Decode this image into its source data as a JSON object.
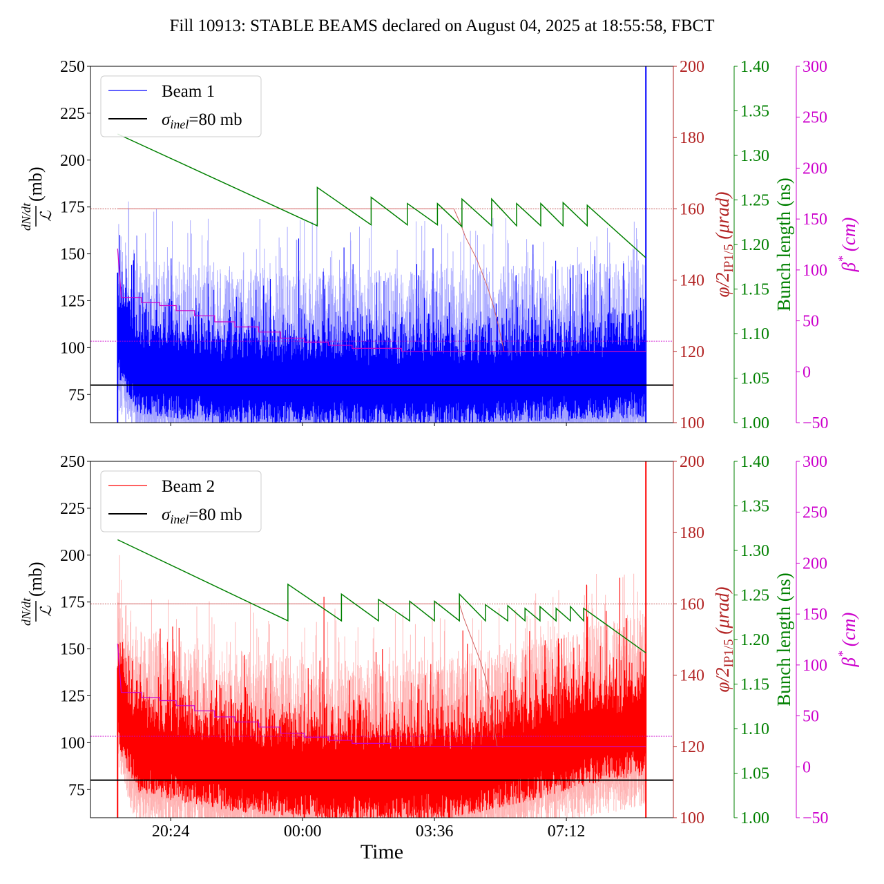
{
  "chart_data": {
    "type": "line",
    "title": "Fill 10913: STABLE BEAMS declared on August 04, 2025 at 18:55:58, FBCT",
    "xlabel": "Time",
    "x_units": "hours relative to 00:00",
    "xlim": [
      -5.79,
      10.12
    ],
    "xticks": [
      {
        "v": -3.6,
        "label": "20:24"
      },
      {
        "v": 0,
        "label": "00:00"
      },
      {
        "v": 3.6,
        "label": "03:36"
      },
      {
        "v": 7.2,
        "label": "07:12"
      }
    ],
    "axes": {
      "left": {
        "label_num": "dN/dt",
        "label_den": "ℒ",
        "label_unit": "(mb)",
        "ylim": [
          60,
          250
        ],
        "ticks": [
          "75",
          "100",
          "125",
          "150",
          "175",
          "200",
          "225",
          "250"
        ],
        "color": "#000000"
      },
      "phi": {
        "label": "φ/2",
        "label_sub": "IP1/5",
        "label_unit": "(μrad)",
        "ylim": [
          100,
          200
        ],
        "ticks": [
          "100",
          "120",
          "140",
          "160",
          "180",
          "200"
        ],
        "color": "#b22222"
      },
      "bunch": {
        "label": "Bunch length (ns)",
        "ylim": [
          1.0,
          1.4
        ],
        "ticks": [
          "1.00",
          "1.05",
          "1.10",
          "1.15",
          "1.20",
          "1.25",
          "1.30",
          "1.35",
          "1.40"
        ],
        "color": "#008000"
      },
      "beta": {
        "label": "β",
        "label_sup": "*",
        "label_unit": "(cm)",
        "ylim": [
          -50,
          300
        ],
        "ticks": [
          "−50",
          "0",
          "50",
          "100",
          "150",
          "200",
          "250",
          "300"
        ],
        "color": "#cc00cc"
      }
    },
    "panels": [
      {
        "beam": "Beam 1",
        "color": "#0000ff",
        "light_color": "#9999ff",
        "legend": {
          "entries": [
            "Beam 1",
            "σ",
            "inel",
            "=80 mb"
          ],
          "placement": "top-left"
        },
        "sigma_inel": 80,
        "phi_ref": 160,
        "beta_ref": 30,
        "xstart": -5.05,
        "xend": 9.37,
        "noise_trend": [
          [
            -5.05,
            110
          ],
          [
            -4.5,
            90
          ],
          [
            -2,
            84
          ],
          [
            2,
            83
          ],
          [
            5,
            84
          ],
          [
            7,
            86
          ],
          [
            9.37,
            88
          ]
        ],
        "noise_spread": 14,
        "light_extra": 45,
        "seed": 7,
        "bunch_length": [
          [
            -5.05,
            1.324
          ],
          [
            0.4,
            1.221
          ],
          [
            0.4,
            1.264
          ],
          [
            1.87,
            1.222
          ],
          [
            1.87,
            1.253
          ],
          [
            2.86,
            1.222
          ],
          [
            2.86,
            1.246
          ],
          [
            3.68,
            1.222
          ],
          [
            3.68,
            1.246
          ],
          [
            4.35,
            1.22
          ],
          [
            4.35,
            1.251
          ],
          [
            5.16,
            1.221
          ],
          [
            5.16,
            1.251
          ],
          [
            5.84,
            1.221
          ],
          [
            5.84,
            1.246
          ],
          [
            6.5,
            1.221
          ],
          [
            6.5,
            1.246
          ],
          [
            7.11,
            1.221
          ],
          [
            7.11,
            1.247
          ],
          [
            7.77,
            1.221
          ],
          [
            7.77,
            1.244
          ],
          [
            9.37,
            1.185
          ]
        ],
        "phi": [
          [
            -5.05,
            160
          ],
          [
            4.13,
            160
          ],
          [
            4.3,
            156
          ],
          [
            4.45,
            152
          ],
          [
            4.6,
            149
          ],
          [
            4.75,
            146
          ],
          [
            4.9,
            142
          ],
          [
            5.05,
            138
          ],
          [
            5.2,
            133
          ],
          [
            5.35,
            127
          ],
          [
            5.5,
            120
          ],
          [
            9.37,
            120
          ]
        ],
        "beta": [
          [
            -5.05,
            121
          ],
          [
            -4.95,
            73
          ],
          [
            -4.4,
            73
          ],
          [
            -4.4,
            68
          ],
          [
            -3.9,
            68
          ],
          [
            -3.9,
            65
          ],
          [
            -3.45,
            65
          ],
          [
            -3.45,
            60
          ],
          [
            -2.95,
            60
          ],
          [
            -2.95,
            55
          ],
          [
            -2.4,
            55
          ],
          [
            -2.4,
            49
          ],
          [
            -1.85,
            49
          ],
          [
            -1.85,
            44
          ],
          [
            -1.2,
            44
          ],
          [
            -1.2,
            39
          ],
          [
            -0.6,
            39
          ],
          [
            -0.6,
            33
          ],
          [
            0.05,
            33
          ],
          [
            0.05,
            29
          ],
          [
            0.7,
            29
          ],
          [
            0.7,
            26
          ],
          [
            1.35,
            26
          ],
          [
            1.35,
            23
          ],
          [
            2.7,
            23
          ],
          [
            2.7,
            20
          ],
          [
            9.37,
            20
          ]
        ]
      },
      {
        "beam": "Beam 2",
        "color": "#ff0000",
        "light_color": "#ffaaaa",
        "legend": {
          "entries": [
            "Beam 2",
            "σ",
            "inel",
            "=80 mb"
          ],
          "placement": "top-left"
        },
        "sigma_inel": 80,
        "phi_ref": 160,
        "beta_ref": 30,
        "xstart": -5.05,
        "xend": 9.37,
        "noise_trend": [
          [
            -5.05,
            125
          ],
          [
            -4.5,
            100
          ],
          [
            -2,
            90
          ],
          [
            1,
            85
          ],
          [
            4,
            86
          ],
          [
            6,
            95
          ],
          [
            8,
            105
          ],
          [
            9.37,
            110
          ]
        ],
        "noise_spread": 15,
        "light_extra": 45,
        "seed": 13,
        "bunch_length": [
          [
            -5.05,
            1.312
          ],
          [
            -0.4,
            1.221
          ],
          [
            -0.4,
            1.262
          ],
          [
            1.06,
            1.221
          ],
          [
            1.06,
            1.251
          ],
          [
            2.07,
            1.221
          ],
          [
            2.07,
            1.245
          ],
          [
            2.92,
            1.221
          ],
          [
            2.92,
            1.243
          ],
          [
            3.6,
            1.221
          ],
          [
            3.6,
            1.243
          ],
          [
            4.28,
            1.221
          ],
          [
            4.28,
            1.251
          ],
          [
            4.99,
            1.221
          ],
          [
            4.99,
            1.239
          ],
          [
            5.6,
            1.221
          ],
          [
            5.6,
            1.238
          ],
          [
            6.07,
            1.221
          ],
          [
            6.07,
            1.235
          ],
          [
            6.48,
            1.221
          ],
          [
            6.48,
            1.237
          ],
          [
            6.92,
            1.221
          ],
          [
            6.92,
            1.235
          ],
          [
            7.31,
            1.221
          ],
          [
            7.31,
            1.237
          ],
          [
            7.67,
            1.221
          ],
          [
            7.67,
            1.235
          ],
          [
            9.37,
            1.185
          ]
        ],
        "phi": [
          [
            -5.05,
            160
          ],
          [
            4.28,
            160
          ],
          [
            4.4,
            156
          ],
          [
            4.55,
            152
          ],
          [
            4.7,
            148
          ],
          [
            4.85,
            144
          ],
          [
            5.0,
            139
          ],
          [
            5.1,
            133
          ],
          [
            5.2,
            127
          ],
          [
            5.31,
            120
          ],
          [
            9.37,
            120
          ]
        ],
        "beta": [
          [
            -5.05,
            121
          ],
          [
            -4.95,
            73
          ],
          [
            -4.4,
            73
          ],
          [
            -4.4,
            68
          ],
          [
            -3.9,
            68
          ],
          [
            -3.9,
            65
          ],
          [
            -3.45,
            65
          ],
          [
            -3.45,
            60
          ],
          [
            -2.95,
            60
          ],
          [
            -2.95,
            55
          ],
          [
            -2.4,
            55
          ],
          [
            -2.4,
            49
          ],
          [
            -1.85,
            49
          ],
          [
            -1.85,
            44
          ],
          [
            -1.2,
            44
          ],
          [
            -1.2,
            39
          ],
          [
            -0.6,
            39
          ],
          [
            -0.6,
            33
          ],
          [
            0.05,
            33
          ],
          [
            0.05,
            29
          ],
          [
            0.7,
            29
          ],
          [
            0.7,
            26
          ],
          [
            1.35,
            26
          ],
          [
            1.35,
            23
          ],
          [
            2.4,
            23
          ],
          [
            2.4,
            20
          ],
          [
            9.37,
            20
          ]
        ]
      }
    ]
  }
}
